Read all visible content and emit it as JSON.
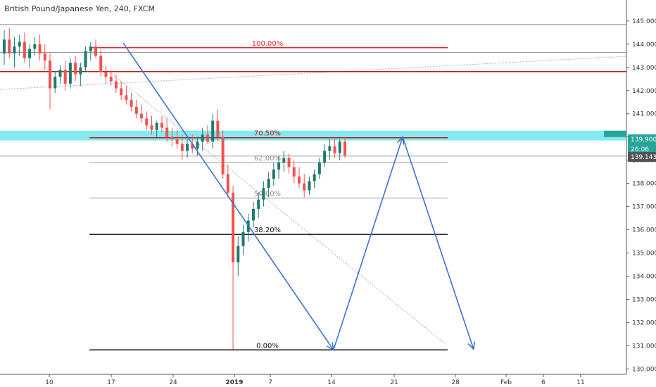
{
  "header": {
    "title": "British Pound/Japanese Yen, 240, FXCM"
  },
  "colors": {
    "up": "#26a69a",
    "down": "#ef5350",
    "candle_body": "#1f7a6e",
    "drawing": "#3b73d1",
    "fib_100": "#e0282e",
    "fib_705": "#b71c1c",
    "zone": "#6ee6ee",
    "price_tag": "#26a69a",
    "gray_tag": "#555555"
  },
  "chart_data": {
    "type": "candlestick",
    "title": "British Pound/Japanese Yen, 240, FXCM",
    "symbol": "GBPJPY",
    "timeframe": "240",
    "source": "FXCM",
    "ylim": [
      129.98,
      145.33
    ],
    "y_ticks": [
      "145.000",
      "144.000",
      "143.000",
      "142.000",
      "141.000",
      "140.000",
      "139.000",
      "138.000",
      "137.000",
      "136.000",
      "135.000",
      "134.000",
      "133.000",
      "132.000",
      "131.000",
      "130.000"
    ],
    "x_ticks": [
      {
        "label": "10",
        "bold": false
      },
      {
        "label": "17",
        "bold": false
      },
      {
        "label": "24",
        "bold": false
      },
      {
        "label": "2019",
        "bold": true
      },
      {
        "label": "7",
        "bold": false
      },
      {
        "label": "14",
        "bold": false
      },
      {
        "label": "21",
        "bold": false
      },
      {
        "label": "28",
        "bold": false
      },
      {
        "label": "Feb",
        "bold": false
      },
      {
        "label": "6",
        "bold": false
      },
      {
        "label": "11",
        "bold": false
      }
    ],
    "price_tags": [
      {
        "value": "139.900",
        "level": 139.9,
        "style": "green"
      },
      {
        "value": "26:06",
        "level": 139.48,
        "style": "green"
      },
      {
        "value": "139.143",
        "level": 139.143,
        "style": "gray"
      }
    ],
    "fib_levels": [
      {
        "label": "100.00%",
        "price": 143.85,
        "color": "#e0282e",
        "width": 1.5
      },
      {
        "label": "70.50%",
        "price": 139.97,
        "color": "#b71c1c",
        "width": 1.5
      },
      {
        "label": "62.00%",
        "price": 138.9,
        "color": "#9e9e9e",
        "width": 1
      },
      {
        "label": "50.00%",
        "price": 137.37,
        "color": "#9e9e9e",
        "width": 1
      },
      {
        "label": "38.20%",
        "price": 135.8,
        "color": "#111111",
        "width": 1.5
      },
      {
        "label": "0.00%",
        "price": 130.82,
        "color": "#111111",
        "width": 1.5
      }
    ],
    "horizontal_lines": [
      {
        "price": 144.85,
        "color": "#888888",
        "width": 1
      },
      {
        "price": 143.65,
        "color": "#888888",
        "width": 1
      },
      {
        "price": 142.82,
        "color": "#b71c1c",
        "width": 1.5
      },
      {
        "price": 139.18,
        "color": "#9e9e9e",
        "width": 1
      }
    ],
    "zone": {
      "top": 140.27,
      "bottom": 139.85
    },
    "path": [
      {
        "day": 13.9,
        "price": 144.05
      },
      {
        "day": 37.6,
        "price": 130.82
      },
      {
        "day": 45.4,
        "price": 140.0
      },
      {
        "day": 53.4,
        "price": 130.85
      }
    ],
    "ohlc": [
      [
        143.6,
        144.6,
        143.1,
        144.2
      ],
      [
        144.2,
        144.7,
        143.4,
        143.6
      ],
      [
        143.6,
        144.3,
        143.0,
        143.9
      ],
      [
        143.9,
        144.4,
        143.5,
        144.1
      ],
      [
        144.1,
        144.5,
        143.2,
        143.4
      ],
      [
        143.4,
        144.0,
        143.0,
        143.8
      ],
      [
        143.8,
        144.3,
        143.5,
        144.0
      ],
      [
        144.0,
        144.4,
        143.3,
        143.6
      ],
      [
        143.6,
        144.0,
        142.9,
        143.3
      ],
      [
        143.3,
        143.6,
        141.2,
        142.1
      ],
      [
        142.1,
        142.8,
        141.9,
        142.6
      ],
      [
        142.6,
        143.1,
        142.3,
        142.9
      ],
      [
        142.9,
        143.3,
        142.0,
        142.3
      ],
      [
        142.3,
        143.4,
        142.1,
        143.2
      ],
      [
        143.2,
        143.5,
        142.4,
        142.7
      ],
      [
        142.7,
        143.2,
        142.2,
        143.0
      ],
      [
        143.0,
        143.9,
        142.8,
        143.7
      ],
      [
        143.7,
        144.1,
        143.3,
        143.9
      ],
      [
        143.9,
        144.2,
        143.4,
        143.5
      ],
      [
        143.5,
        143.8,
        142.6,
        142.8
      ],
      [
        142.8,
        143.1,
        142.3,
        142.6
      ],
      [
        142.6,
        142.9,
        142.2,
        142.4
      ],
      [
        142.4,
        142.7,
        141.9,
        142.1
      ],
      [
        142.1,
        142.4,
        141.6,
        141.8
      ],
      [
        141.8,
        142.2,
        141.4,
        141.6
      ],
      [
        141.6,
        141.9,
        141.1,
        141.3
      ],
      [
        141.3,
        141.6,
        140.8,
        141.0
      ],
      [
        141.0,
        141.4,
        140.6,
        140.8
      ],
      [
        140.8,
        141.1,
        140.3,
        140.5
      ],
      [
        140.5,
        140.9,
        140.1,
        140.3
      ],
      [
        140.3,
        140.7,
        140.0,
        140.6
      ],
      [
        140.6,
        140.9,
        140.2,
        140.4
      ],
      [
        140.4,
        140.8,
        139.8,
        140.0
      ],
      [
        140.0,
        140.4,
        139.6,
        139.9
      ],
      [
        139.9,
        140.3,
        139.5,
        139.7
      ],
      [
        139.7,
        140.1,
        139.0,
        139.4
      ],
      [
        139.4,
        139.9,
        139.1,
        139.7
      ],
      [
        139.7,
        140.1,
        139.3,
        139.5
      ],
      [
        139.5,
        140.0,
        139.2,
        139.8
      ],
      [
        139.8,
        140.4,
        139.4,
        140.1
      ],
      [
        140.1,
        140.5,
        139.7,
        139.8
      ],
      [
        139.8,
        141.0,
        139.5,
        140.7
      ],
      [
        140.7,
        141.2,
        139.8,
        140.0
      ],
      [
        140.0,
        140.3,
        138.2,
        138.4
      ],
      [
        138.4,
        138.8,
        137.4,
        137.6
      ],
      [
        137.6,
        137.9,
        130.85,
        134.6
      ],
      [
        134.6,
        135.7,
        134.0,
        135.3
      ],
      [
        135.3,
        136.2,
        134.9,
        135.9
      ],
      [
        135.9,
        136.7,
        135.5,
        136.4
      ],
      [
        136.4,
        137.2,
        136.1,
        136.9
      ],
      [
        136.9,
        137.6,
        136.5,
        137.3
      ],
      [
        137.3,
        138.1,
        137.0,
        137.8
      ],
      [
        137.8,
        138.5,
        137.4,
        138.2
      ],
      [
        138.2,
        138.9,
        137.9,
        138.6
      ],
      [
        138.6,
        139.2,
        138.2,
        138.9
      ],
      [
        138.9,
        139.4,
        138.5,
        139.1
      ],
      [
        139.1,
        139.3,
        138.4,
        138.7
      ],
      [
        138.7,
        139.0,
        138.0,
        138.3
      ],
      [
        138.3,
        138.7,
        137.8,
        138.0
      ],
      [
        138.0,
        138.4,
        137.4,
        137.7
      ],
      [
        137.7,
        138.3,
        137.5,
        138.1
      ],
      [
        138.1,
        138.6,
        137.8,
        138.4
      ],
      [
        138.4,
        139.1,
        138.2,
        138.9
      ],
      [
        138.9,
        139.7,
        138.7,
        139.4
      ],
      [
        139.4,
        139.9,
        139.0,
        139.6
      ],
      [
        139.6,
        140.0,
        139.1,
        139.3
      ],
      [
        139.3,
        139.9,
        139.0,
        139.8
      ],
      [
        139.8,
        140.0,
        139.1,
        139.2
      ]
    ]
  }
}
